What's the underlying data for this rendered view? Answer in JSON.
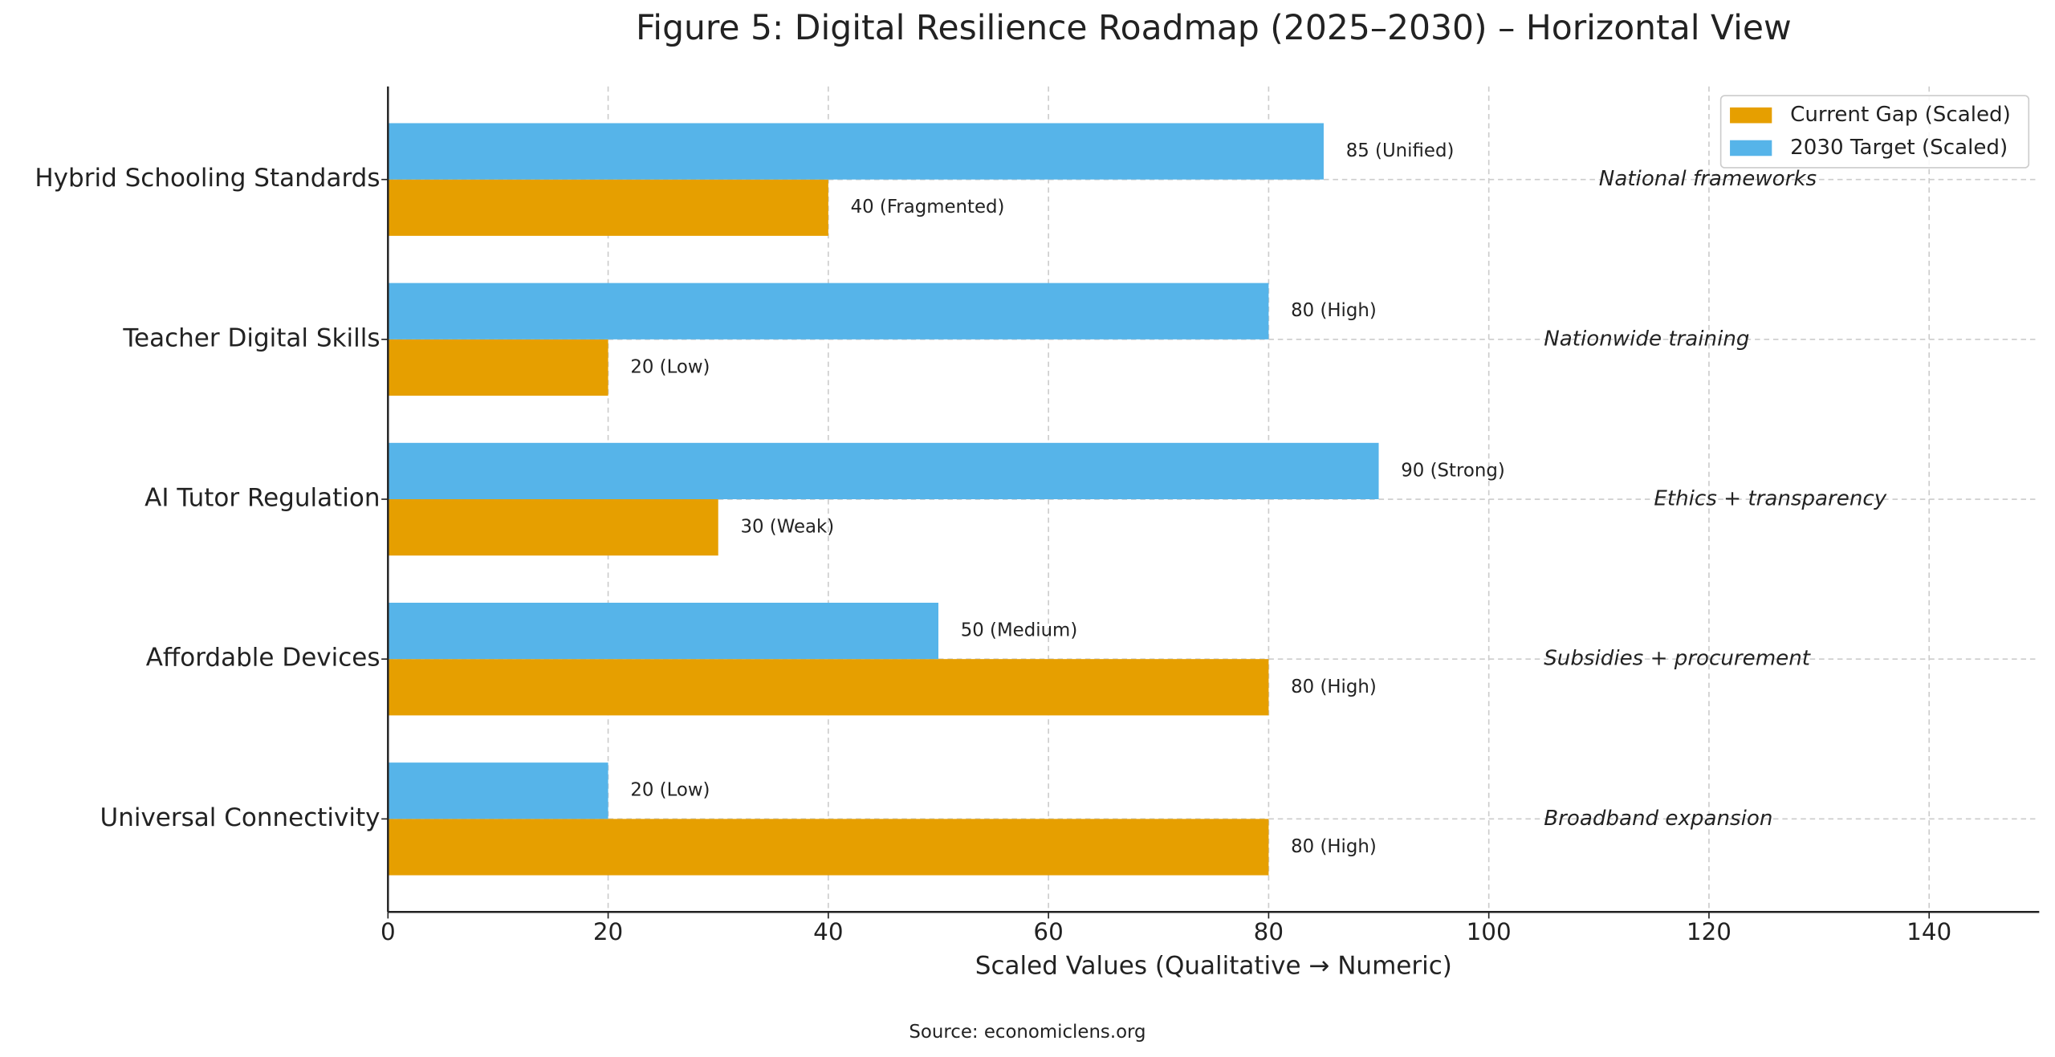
{
  "chart_data": {
    "type": "barh",
    "title": "Figure 5: Digital Resilience Roadmap (2025–2030) – Horizontal View",
    "xlabel": "Scaled Values (Qualitative → Numeric)",
    "source": "Source: economiclens.org",
    "categories": [
      "Hybrid Schooling Standards",
      "Teacher Digital Skills",
      "AI Tutor Regulation",
      "Affordable Devices",
      "Universal Connectivity"
    ],
    "series": [
      {
        "name": "Current Gap (Scaled)",
        "color": "#e69f00",
        "values": [
          40,
          20,
          30,
          80,
          80
        ],
        "value_labels": [
          "40 (Fragmented)",
          "20 (Low)",
          "30 (Weak)",
          "80 (High)",
          "80 (High)"
        ]
      },
      {
        "name": "2030 Target (Scaled)",
        "color": "#56b4e9",
        "values": [
          85,
          80,
          90,
          50,
          20
        ],
        "value_labels": [
          "85 (Unified)",
          "80 (High)",
          "90 (Strong)",
          "50 (Medium)",
          "20 (Low)"
        ]
      }
    ],
    "annotations": [
      "National frameworks",
      "Nationwide training",
      "Ethics + transparency",
      "Subsidies + procurement",
      "Broadband expansion"
    ],
    "xlim": [
      0,
      150
    ],
    "xticks": [
      0,
      20,
      40,
      60,
      80,
      100,
      120,
      140
    ],
    "grid": true,
    "legend": "upper right"
  }
}
